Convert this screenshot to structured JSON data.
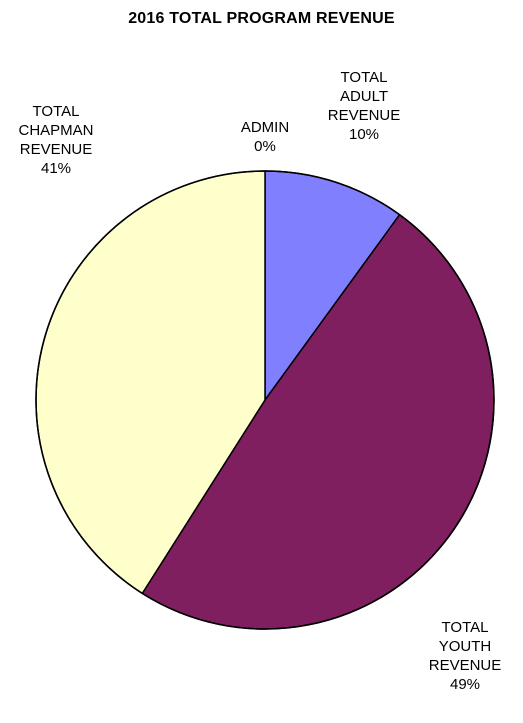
{
  "chart_data": {
    "type": "pie",
    "title": "2016 TOTAL PROGRAM REVENUE",
    "slices": [
      {
        "label": "ADMIN",
        "percent_label": "0%",
        "value": 0,
        "color": "#ffffff"
      },
      {
        "label": "TOTAL ADULT REVENUE",
        "label_lines": [
          "TOTAL",
          "ADULT",
          "REVENUE"
        ],
        "percent_label": "10%",
        "value": 10,
        "color": "#8080ff"
      },
      {
        "label": "TOTAL YOUTH REVENUE",
        "label_lines": [
          "TOTAL",
          "YOUTH",
          "REVENUE"
        ],
        "percent_label": "49%",
        "value": 49,
        "color": "#7f1f5f"
      },
      {
        "label": "TOTAL CHAPMAN REVENUE",
        "label_lines": [
          "TOTAL",
          "CHAPMAN",
          "REVENUE"
        ],
        "percent_label": "41%",
        "value": 41,
        "color": "#ffffcc"
      }
    ],
    "legend": false
  }
}
